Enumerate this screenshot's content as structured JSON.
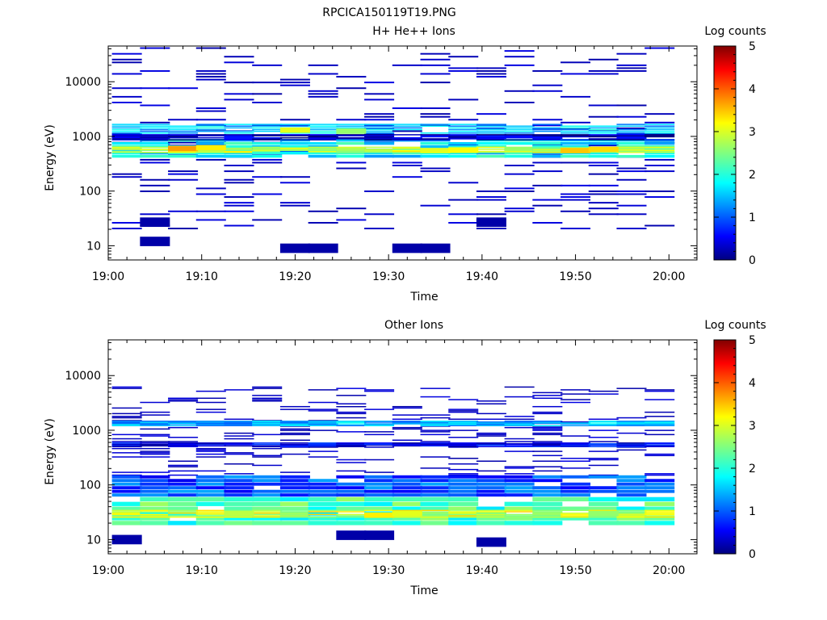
{
  "figure_title": "RPCICA150119T19.PNG",
  "chart_data": [
    {
      "type": "heatmap",
      "title": "H+ He++ Ions",
      "xlabel": "Time",
      "ylabel": "Energy (eV)",
      "colorbar_label": "Log counts",
      "colorbar_ticks": [
        "0",
        "1",
        "2",
        "3",
        "4",
        "5"
      ],
      "zlim": [
        0,
        5
      ],
      "x_ticks": [
        "19:00",
        "19:10",
        "19:20",
        "19:30",
        "19:40",
        "19:50",
        "20:00"
      ],
      "x_range": [
        "19:00",
        "20:03"
      ],
      "y_scale": "log",
      "y_ticks": [
        "10",
        "100",
        "1000",
        "10000"
      ],
      "y_range": [
        5.5,
        45000
      ],
      "time_bins": [
        "19:02",
        "19:05",
        "19:08",
        "19:11",
        "19:14",
        "19:17",
        "19:20",
        "19:23",
        "19:26",
        "19:29",
        "19:32",
        "19:35",
        "19:38",
        "19:41",
        "19:44",
        "19:47",
        "19:50",
        "19:53",
        "19:56",
        "19:59"
      ],
      "bands": [
        {
          "e_min": 1100,
          "e_max": 1700,
          "value": 1.6
        },
        {
          "e_min": 400,
          "e_max": 900,
          "value": 1.8
        },
        {
          "e_min": 500,
          "e_max": 650,
          "value": 2.8
        },
        {
          "e_min": 850,
          "e_max": 1100,
          "value": 0.3
        }
      ],
      "hotspots": [
        {
          "t": "19:08",
          "e": 600,
          "value": 3.6
        },
        {
          "t": "19:11",
          "e": 620,
          "value": 3.2
        },
        {
          "t": "19:20",
          "e": 1300,
          "value": 3.0
        },
        {
          "t": "19:26",
          "e": 1250,
          "value": 2.6
        },
        {
          "t": "19:35",
          "e": 550,
          "value": 3.0
        },
        {
          "t": "19:38",
          "e": 560,
          "value": 3.1
        },
        {
          "t": "19:50",
          "e": 550,
          "value": 3.4
        },
        {
          "t": "19:53",
          "e": 580,
          "value": 3.3
        }
      ],
      "low_energy_blocks": [
        {
          "t": "19:05",
          "e": 12,
          "value": 0.2
        },
        {
          "t": "19:05",
          "e": 27,
          "value": 0.2
        },
        {
          "t": "19:20",
          "e": 9,
          "value": 0.2
        },
        {
          "t": "19:23",
          "e": 9,
          "value": 0.2
        },
        {
          "t": "19:32",
          "e": 9,
          "value": 0.2
        },
        {
          "t": "19:35",
          "e": 9,
          "value": 0.2
        },
        {
          "t": "19:41",
          "e": 27,
          "value": 0.2
        }
      ],
      "sparse_density": 0.22,
      "sparse_range": [
        20,
        45000
      ],
      "sparse_value": 0.2
    },
    {
      "type": "heatmap",
      "title": "Other Ions",
      "xlabel": "Time",
      "ylabel": "Energy (eV)",
      "colorbar_label": "Log counts",
      "colorbar_ticks": [
        "0",
        "1",
        "2",
        "3",
        "4",
        "5"
      ],
      "zlim": [
        0,
        5
      ],
      "x_ticks": [
        "19:00",
        "19:10",
        "19:20",
        "19:30",
        "19:40",
        "19:50",
        "20:00"
      ],
      "x_range": [
        "19:00",
        "20:03"
      ],
      "y_scale": "log",
      "y_ticks": [
        "10",
        "100",
        "1000",
        "10000"
      ],
      "y_range": [
        5.5,
        45000
      ],
      "time_bins": [
        "19:02",
        "19:05",
        "19:08",
        "19:11",
        "19:14",
        "19:17",
        "19:20",
        "19:23",
        "19:26",
        "19:29",
        "19:32",
        "19:35",
        "19:38",
        "19:41",
        "19:44",
        "19:47",
        "19:50",
        "19:53",
        "19:56",
        "19:59"
      ],
      "bands": [
        {
          "e_min": 18,
          "e_max": 60,
          "value": 2.2
        },
        {
          "e_min": 60,
          "e_max": 150,
          "value": 1.0
        },
        {
          "e_min": 25,
          "e_max": 35,
          "value": 2.9
        },
        {
          "e_min": 1200,
          "e_max": 1500,
          "value": 1.5
        },
        {
          "e_min": 500,
          "e_max": 600,
          "value": 0.6
        }
      ],
      "hotspots": [
        {
          "t": "19:29",
          "e": 28,
          "value": 3.2
        },
        {
          "t": "19:32",
          "e": 30,
          "value": 3.0
        },
        {
          "t": "19:14",
          "e": 30,
          "value": 2.8
        },
        {
          "t": "19:53",
          "e": 30,
          "value": 2.6
        }
      ],
      "low_energy_blocks": [
        {
          "t": "19:02",
          "e": 10,
          "value": 0.2
        },
        {
          "t": "19:26",
          "e": 12,
          "value": 0.2
        },
        {
          "t": "19:29",
          "e": 12,
          "value": 0.2
        },
        {
          "t": "19:41",
          "e": 9,
          "value": 0.2
        }
      ],
      "sparse_density": 0.18,
      "sparse_range": [
        150,
        6500
      ],
      "sparse_value": 0.2
    }
  ]
}
